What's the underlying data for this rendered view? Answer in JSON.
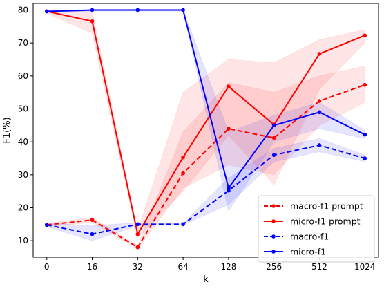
{
  "chart_data": {
    "type": "line",
    "title": "",
    "xlabel": "k",
    "ylabel": "F1(%)",
    "categories": [
      "0",
      "16",
      "32",
      "64",
      "128",
      "256",
      "512",
      "1024"
    ],
    "ylim": [
      5,
      82
    ],
    "yticks": [
      10,
      20,
      30,
      40,
      50,
      60,
      70,
      80
    ],
    "grid": false,
    "legend_position": "lower-right",
    "series": [
      {
        "name": "macro-f1 prompt",
        "color": "#ff0000",
        "linestyle": "dashed",
        "values": [
          14.8,
          16.3,
          8.0,
          30.5,
          44.0,
          41.2,
          52.4,
          57.3
        ],
        "band_low": [
          14.3,
          15.5,
          7.5,
          26.0,
          33.0,
          30.0,
          45.0,
          52.0
        ],
        "band_high": [
          15.3,
          17.0,
          8.5,
          43.0,
          58.0,
          55.0,
          60.0,
          63.0
        ]
      },
      {
        "name": "micro-f1 prompt",
        "color": "#ff0000",
        "linestyle": "solid",
        "values": [
          79.6,
          76.6,
          12.0,
          35.3,
          56.8,
          45.2,
          66.7,
          72.3
        ],
        "band_low": [
          79.0,
          73.0,
          11.0,
          25.0,
          42.0,
          27.0,
          56.0,
          70.0
        ],
        "band_high": [
          80.0,
          79.5,
          13.0,
          55.0,
          65.0,
          64.0,
          71.0,
          74.0
        ]
      },
      {
        "name": "macro-f1",
        "color": "#0000ff",
        "linestyle": "dashed",
        "values": [
          14.8,
          12.0,
          15.0,
          15.0,
          25.2,
          36.0,
          39.0,
          35.0
        ],
        "band_low": [
          14.3,
          10.0,
          14.5,
          14.8,
          21.0,
          34.0,
          37.0,
          34.0
        ],
        "band_high": [
          15.3,
          14.5,
          15.5,
          15.2,
          29.0,
          38.0,
          41.0,
          36.0
        ]
      },
      {
        "name": "micro-f1",
        "color": "#0000ff",
        "linestyle": "solid",
        "values": [
          79.6,
          80.0,
          80.0,
          80.0,
          26.0,
          45.0,
          49.0,
          42.2
        ],
        "band_low": [
          79.3,
          79.7,
          79.7,
          79.7,
          19.0,
          40.0,
          44.0,
          41.0
        ],
        "band_high": [
          79.9,
          80.2,
          80.2,
          80.2,
          43.0,
          48.0,
          52.0,
          43.5
        ]
      }
    ]
  }
}
